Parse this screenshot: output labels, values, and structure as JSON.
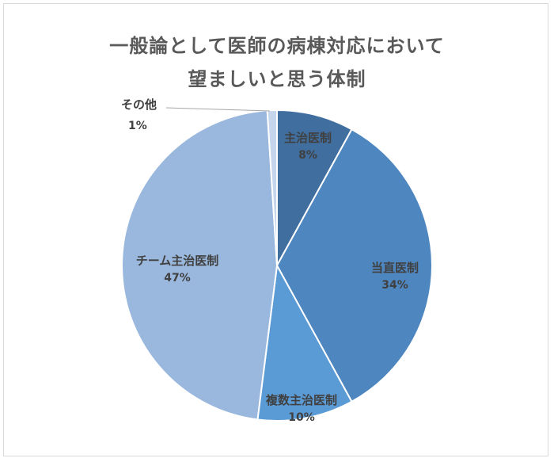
{
  "chart_data": {
    "type": "pie",
    "title": "一般論として医師の病棟対応において望ましいと思う体制",
    "title_lines": [
      "一般論として医師の病棟対応において",
      "望ましいと思う体制"
    ],
    "categories": [
      "主治医制",
      "当直医制",
      "複数主治医制",
      "チーム主治医制",
      "その他"
    ],
    "values": [
      8,
      34,
      10,
      47,
      1
    ],
    "value_labels": [
      "8%",
      "34%",
      "10%",
      "47%",
      "1%"
    ],
    "colors": [
      "#3f6e9f",
      "#4e86bf",
      "#5b9bd5",
      "#9ab8dd",
      "#c5d6ec"
    ],
    "start_angle": 0,
    "direction": "clockwise",
    "legend": "none",
    "data_labels": "category_and_percent"
  },
  "labels": {
    "s0": {
      "name": "主治医制",
      "pct": "8%"
    },
    "s1": {
      "name": "当直医制",
      "pct": "34%"
    },
    "s2": {
      "name": "複数主治医制",
      "pct": "10%"
    },
    "s3": {
      "name": "チーム主治医制",
      "pct": "47%"
    },
    "s4": {
      "name": "その他",
      "pct": "1%"
    }
  }
}
